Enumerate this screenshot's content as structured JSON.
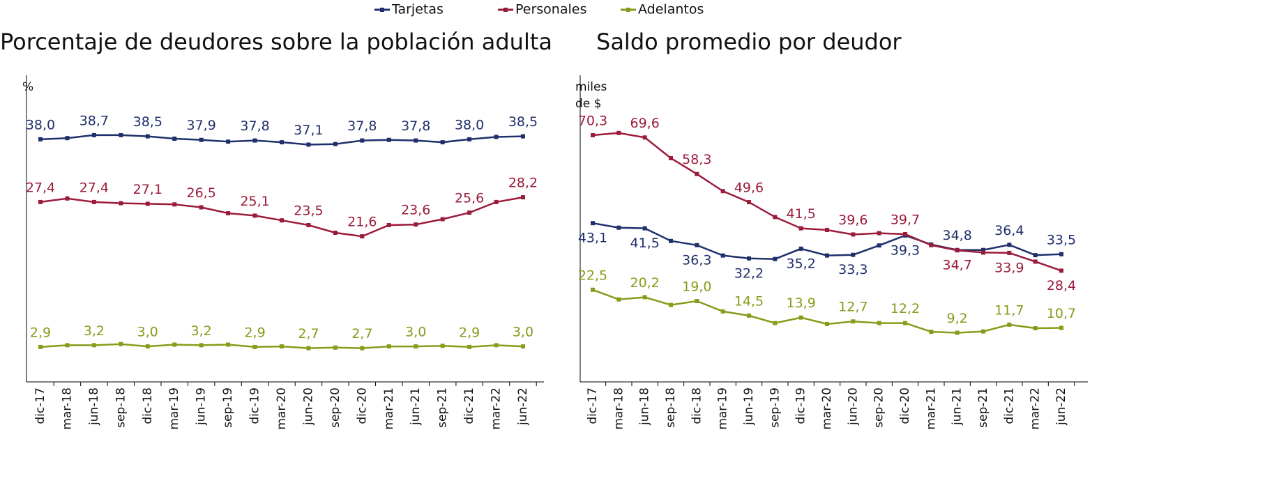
{
  "chart_data": [
    {
      "type": "line",
      "title": "Porcentaje de deudores sobre la población adulta",
      "y_label": [
        "%"
      ],
      "categories": [
        "dic-17",
        "mar-18",
        "jun-18",
        "sep-18",
        "dic-18",
        "mar-19",
        "jun-19",
        "sep-19",
        "dic-19",
        "mar-20",
        "jun-20",
        "sep-20",
        "dic-20",
        "mar-21",
        "jun-21",
        "sep-21",
        "dic-21",
        "mar-22",
        "jun-22"
      ],
      "ylim": [
        -3,
        50
      ],
      "series": [
        {
          "name": "Tarjetas",
          "color": "#1f2f6b",
          "values": [
            38.0,
            38.2,
            38.7,
            38.7,
            38.5,
            38.1,
            37.9,
            37.6,
            37.8,
            37.5,
            37.1,
            37.2,
            37.8,
            37.9,
            37.8,
            37.5,
            38.0,
            38.4,
            38.5
          ],
          "value_labels": [
            "38,0",
            null,
            "38,7",
            null,
            "38,5",
            null,
            "37,9",
            null,
            "37,8",
            null,
            "37,1",
            null,
            "37,8",
            null,
            "37,8",
            null,
            "38,0",
            null,
            "38,5"
          ]
        },
        {
          "name": "Personales",
          "color": "#9b1b3a",
          "values": [
            27.4,
            28.0,
            27.4,
            27.2,
            27.1,
            27.0,
            26.5,
            25.5,
            25.1,
            24.3,
            23.5,
            22.2,
            21.6,
            23.5,
            23.6,
            24.5,
            25.6,
            27.4,
            28.2
          ],
          "value_labels": [
            "27,4",
            null,
            "27,4",
            null,
            "27,1",
            null,
            "26,5",
            null,
            "25,1",
            null,
            "23,5",
            null,
            "21,6",
            null,
            "23,6",
            null,
            "25,6",
            null,
            "28,2"
          ]
        },
        {
          "name": "Adelantos",
          "color": "#8a9a1a",
          "values": [
            2.9,
            3.2,
            3.2,
            3.4,
            3.0,
            3.3,
            3.2,
            3.3,
            2.9,
            3.0,
            2.7,
            2.8,
            2.7,
            3.0,
            3.0,
            3.1,
            2.9,
            3.2,
            3.0
          ],
          "value_labels": [
            "2,9",
            null,
            "3,2",
            null,
            "3,0",
            null,
            "3,2",
            null,
            "2,9",
            null,
            "2,7",
            null,
            "2,7",
            null,
            "3,0",
            null,
            "2,9",
            null,
            "3,0"
          ]
        }
      ]
    },
    {
      "type": "line",
      "title": "Saldo promedio por deudor",
      "y_label": [
        "miles",
        "de $"
      ],
      "categories": [
        "dic-17",
        "mar-18",
        "jun-18",
        "sep-18",
        "dic-18",
        "mar-19",
        "jun-19",
        "sep-19",
        "dic-19",
        "mar-20",
        "jun-20",
        "sep-20",
        "dic-20",
        "mar-21",
        "jun-21",
        "sep-21",
        "dic-21",
        "mar-22",
        "jun-22"
      ],
      "ylim": [
        -6,
        91
      ],
      "series": [
        {
          "name": "Tarjetas",
          "color": "#1f2f6b",
          "values": [
            43.1,
            41.7,
            41.5,
            37.6,
            36.3,
            33.1,
            32.2,
            32.0,
            35.2,
            33.1,
            33.3,
            36.2,
            39.3,
            36.5,
            34.8,
            34.8,
            36.4,
            33.2,
            33.5
          ],
          "value_labels": [
            "43,1",
            null,
            "41,5",
            null,
            "36,3",
            null,
            "32,2",
            null,
            "35,2",
            null,
            "33,3",
            null,
            "39,3",
            null,
            "34,8",
            null,
            "36,4",
            null,
            "33,5"
          ]
        },
        {
          "name": "Personales",
          "color": "#9b1b3a",
          "values": [
            70.3,
            71.0,
            69.6,
            63.2,
            58.3,
            53.0,
            49.6,
            45.0,
            41.5,
            41.0,
            39.6,
            40.0,
            39.7,
            36.3,
            34.7,
            34.0,
            33.9,
            31.2,
            28.4
          ],
          "value_labels": [
            "70,3",
            null,
            "69,6",
            null,
            "58,3",
            null,
            "49,6",
            null,
            "41,5",
            null,
            "39,6",
            null,
            "39,7",
            null,
            "34,7",
            null,
            "33,9",
            null,
            "28,4"
          ]
        },
        {
          "name": "Adelantos",
          "color": "#8a9a1a",
          "values": [
            22.5,
            19.5,
            20.2,
            17.8,
            19.0,
            15.8,
            14.5,
            12.2,
            13.9,
            11.9,
            12.7,
            12.2,
            12.2,
            9.5,
            9.2,
            9.6,
            11.7,
            10.6,
            10.7
          ],
          "value_labels": [
            "22,5",
            null,
            "20,2",
            null,
            "19,0",
            null,
            "14,5",
            null,
            "13,9",
            null,
            "12,7",
            null,
            "12,2",
            null,
            "9,2",
            null,
            "11,7",
            null,
            "10,7"
          ]
        }
      ]
    }
  ]
}
